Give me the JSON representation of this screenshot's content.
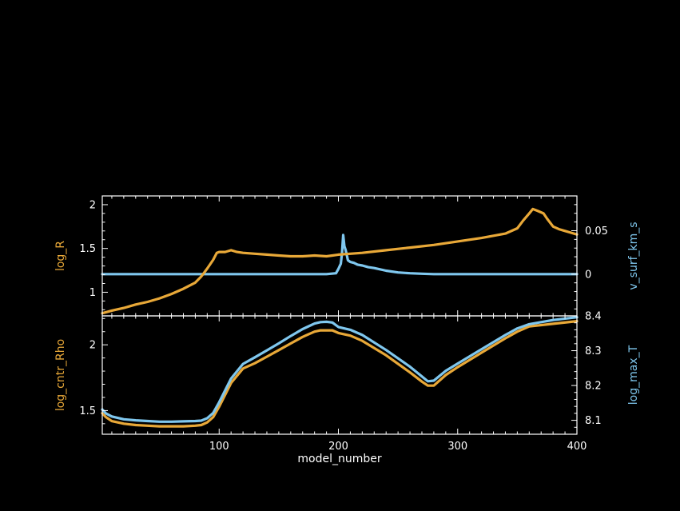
{
  "colors": {
    "orange": "#e8a838",
    "blue": "#7fc7ee",
    "axis": "#ffffff",
    "background": "#000000"
  },
  "chart_data": [
    {
      "type": "line",
      "xlabel": "model_number",
      "xlim": [
        2,
        400
      ],
      "grid": false,
      "left_axis": {
        "label": "log_R",
        "ylim": [
          0.73,
          2.1
        ],
        "ticks": [
          1,
          1.5,
          2
        ],
        "tick_labels": [
          "1",
          "1.5",
          "2"
        ]
      },
      "right_axis": {
        "label": "v_surf_km_s",
        "ylim": [
          -0.048,
          0.09
        ],
        "ticks": [
          0,
          0.05
        ],
        "tick_labels": [
          "0",
          "0.05"
        ]
      },
      "series": [
        {
          "name": "log_R",
          "axis": "left",
          "color": "#e8a838",
          "x": [
            2,
            10,
            20,
            30,
            40,
            50,
            60,
            70,
            80,
            85,
            90,
            95,
            98,
            100,
            105,
            110,
            115,
            120,
            130,
            140,
            150,
            160,
            170,
            180,
            190,
            195,
            200,
            210,
            220,
            240,
            260,
            280,
            300,
            320,
            340,
            350,
            355,
            360,
            363,
            367,
            372,
            375,
            380,
            385,
            390,
            395,
            400
          ],
          "y": [
            0.76,
            0.79,
            0.82,
            0.86,
            0.89,
            0.93,
            0.98,
            1.04,
            1.11,
            1.18,
            1.27,
            1.37,
            1.45,
            1.46,
            1.46,
            1.48,
            1.46,
            1.45,
            1.44,
            1.43,
            1.42,
            1.41,
            1.41,
            1.42,
            1.41,
            1.42,
            1.43,
            1.44,
            1.45,
            1.48,
            1.51,
            1.54,
            1.58,
            1.62,
            1.67,
            1.73,
            1.82,
            1.9,
            1.95,
            1.93,
            1.9,
            1.84,
            1.75,
            1.72,
            1.7,
            1.68,
            1.66
          ]
        },
        {
          "name": "v_surf_km_s",
          "axis": "right",
          "color": "#7fc7ee",
          "x": [
            2,
            50,
            100,
            150,
            190,
            198,
            200,
            202,
            203,
            204,
            205,
            206,
            207,
            208,
            210,
            213,
            216,
            220,
            225,
            230,
            240,
            250,
            260,
            270,
            280,
            300,
            350,
            400
          ],
          "y": [
            0,
            0,
            0,
            0,
            0,
            0.001,
            0.006,
            0.012,
            0.024,
            0.045,
            0.032,
            0.028,
            0.022,
            0.016,
            0.014,
            0.013,
            0.011,
            0.01,
            0.008,
            0.007,
            0.004,
            0.002,
            0.001,
            0.0005,
            0,
            0,
            0,
            0
          ]
        }
      ]
    },
    {
      "type": "line",
      "xlabel": "model_number",
      "xlim": [
        2,
        400
      ],
      "grid": false,
      "x_ticks": [
        100,
        200,
        300,
        400
      ],
      "x_tick_labels": [
        "100",
        "200",
        "300",
        "400"
      ],
      "left_axis": {
        "label": "log_cntr_Rho",
        "ylim": [
          1.32,
          2.22
        ],
        "ticks": [
          1.5,
          2
        ],
        "tick_labels": [
          "1.5",
          "2"
        ]
      },
      "right_axis": {
        "label": "log_max_T",
        "ylim": [
          8.06,
          8.4
        ],
        "ticks": [
          8.1,
          8.2,
          8.3,
          8.4
        ],
        "tick_labels": [
          "8.1",
          "8.2",
          "8.3",
          "8.4"
        ]
      },
      "series": [
        {
          "name": "log_cntr_Rho",
          "axis": "left",
          "color": "#e8a838",
          "x": [
            2,
            5,
            10,
            20,
            30,
            40,
            50,
            60,
            70,
            80,
            85,
            90,
            95,
            100,
            110,
            120,
            130,
            140,
            150,
            160,
            170,
            180,
            185,
            190,
            195,
            200,
            210,
            220,
            240,
            260,
            270,
            275,
            280,
            290,
            300,
            320,
            340,
            350,
            360,
            380,
            400
          ],
          "y": [
            1.48,
            1.45,
            1.42,
            1.4,
            1.39,
            1.385,
            1.38,
            1.38,
            1.38,
            1.385,
            1.39,
            1.41,
            1.45,
            1.53,
            1.71,
            1.82,
            1.86,
            1.91,
            1.96,
            2.01,
            2.06,
            2.1,
            2.11,
            2.11,
            2.11,
            2.09,
            2.07,
            2.03,
            1.92,
            1.79,
            1.72,
            1.69,
            1.69,
            1.77,
            1.83,
            1.94,
            2.05,
            2.1,
            2.14,
            2.16,
            2.18
          ]
        },
        {
          "name": "log_max_T",
          "axis": "right",
          "color": "#7fc7ee",
          "x": [
            2,
            5,
            10,
            20,
            30,
            40,
            50,
            60,
            70,
            80,
            85,
            90,
            95,
            100,
            110,
            120,
            130,
            140,
            150,
            160,
            170,
            180,
            185,
            190,
            195,
            200,
            210,
            220,
            240,
            260,
            270,
            275,
            280,
            290,
            300,
            320,
            340,
            350,
            360,
            380,
            400
          ],
          "y": [
            8.131,
            8.12,
            8.111,
            8.103,
            8.1,
            8.098,
            8.096,
            8.096,
            8.097,
            8.098,
            8.099,
            8.106,
            8.121,
            8.152,
            8.22,
            8.262,
            8.281,
            8.301,
            8.321,
            8.342,
            8.362,
            8.378,
            8.382,
            8.383,
            8.381,
            8.368,
            8.36,
            8.345,
            8.302,
            8.254,
            8.226,
            8.212,
            8.214,
            8.242,
            8.263,
            8.304,
            8.345,
            8.364,
            8.376,
            8.388,
            8.396
          ]
        }
      ]
    }
  ]
}
